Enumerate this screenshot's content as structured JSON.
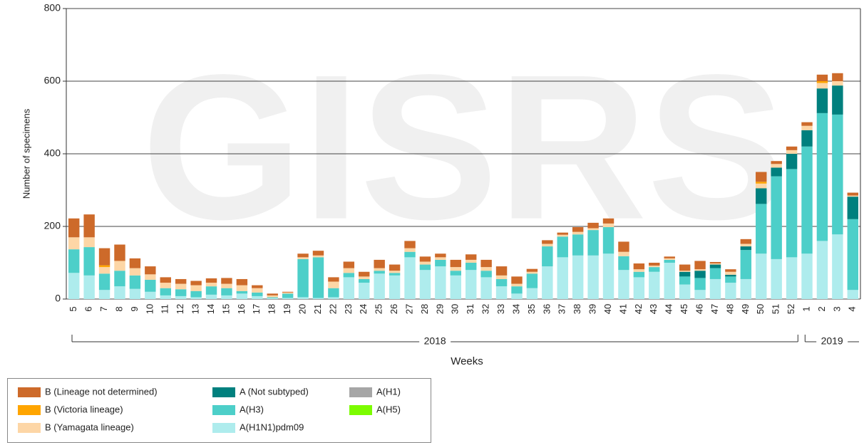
{
  "chart_data": {
    "type": "stacked_bar",
    "watermark": "GISRS",
    "ylabel": "Number of specimens",
    "xlabel": "Weeks",
    "year_labels": [
      "2018",
      "2019"
    ],
    "categories": [
      "5",
      "6",
      "7",
      "8",
      "9",
      "10",
      "11",
      "12",
      "13",
      "14",
      "15",
      "16",
      "17",
      "18",
      "19",
      "20",
      "21",
      "22",
      "23",
      "24",
      "25",
      "26",
      "27",
      "28",
      "29",
      "30",
      "31",
      "32",
      "33",
      "34",
      "35",
      "36",
      "37",
      "38",
      "39",
      "40",
      "41",
      "42",
      "43",
      "44",
      "45",
      "46",
      "47",
      "48",
      "49",
      "50",
      "51",
      "52",
      "1",
      "2",
      "3",
      "4"
    ],
    "ylim": [
      0,
      800
    ],
    "yticks": [
      0,
      200,
      400,
      600,
      800
    ],
    "grid": true,
    "series": [
      {
        "name": "B (Lineage not determined)",
        "color": "#cd6a2a",
        "values": [
          52,
          63,
          47,
          45,
          27,
          22,
          15,
          13,
          12,
          12,
          16,
          17,
          8,
          5,
          2,
          10,
          13,
          12,
          18,
          13,
          23,
          17,
          20,
          14,
          10,
          20,
          15,
          20,
          25,
          20,
          8,
          10,
          6,
          13,
          15,
          14,
          28,
          16,
          8,
          5,
          17,
          23,
          4,
          7,
          13,
          27,
          8,
          10,
          10,
          18,
          22,
          8
        ]
      },
      {
        "name": "B (Victoria lineage)",
        "color": "#ffa500",
        "values": [
          0,
          0,
          5,
          0,
          0,
          0,
          0,
          0,
          0,
          0,
          0,
          0,
          0,
          0,
          0,
          0,
          0,
          0,
          0,
          0,
          0,
          0,
          0,
          0,
          0,
          0,
          0,
          0,
          0,
          0,
          0,
          0,
          0,
          0,
          0,
          0,
          0,
          0,
          0,
          0,
          0,
          0,
          0,
          0,
          0,
          5,
          0,
          0,
          0,
          5,
          0,
          0
        ]
      },
      {
        "name": "B (Yamagata lineage)",
        "color": "#fdd6a6",
        "values": [
          33,
          27,
          18,
          27,
          20,
          15,
          15,
          15,
          16,
          10,
          12,
          16,
          12,
          5,
          3,
          5,
          5,
          18,
          13,
          7,
          7,
          6,
          10,
          8,
          7,
          10,
          8,
          10,
          10,
          7,
          5,
          7,
          5,
          7,
          5,
          10,
          12,
          7,
          4,
          4,
          3,
          4,
          3,
          8,
          7,
          13,
          10,
          10,
          12,
          15,
          12,
          3
        ]
      },
      {
        "name": "A (Not subtyped)",
        "color": "#00807e",
        "values": [
          0,
          0,
          0,
          0,
          0,
          0,
          0,
          0,
          0,
          0,
          0,
          0,
          0,
          0,
          0,
          0,
          0,
          0,
          0,
          0,
          0,
          0,
          0,
          0,
          0,
          0,
          0,
          0,
          0,
          0,
          0,
          0,
          0,
          0,
          0,
          0,
          0,
          0,
          0,
          0,
          13,
          20,
          10,
          5,
          10,
          43,
          24,
          42,
          45,
          68,
          80,
          62
        ]
      },
      {
        "name": "A(H3)",
        "color": "#4dcfc9",
        "values": [
          65,
          78,
          45,
          43,
          37,
          33,
          20,
          19,
          17,
          23,
          20,
          7,
          10,
          2,
          12,
          105,
          112,
          25,
          12,
          10,
          8,
          7,
          15,
          15,
          18,
          13,
          20,
          18,
          20,
          20,
          40,
          55,
          57,
          58,
          70,
          73,
          38,
          15,
          13,
          8,
          22,
          33,
          30,
          17,
          80,
          137,
          228,
          243,
          295,
          352,
          330,
          195
        ]
      },
      {
        "name": "A(H1N1)pdm09",
        "color": "#aeeced",
        "values": [
          72,
          65,
          25,
          35,
          28,
          20,
          10,
          8,
          5,
          12,
          10,
          15,
          8,
          3,
          3,
          5,
          3,
          5,
          60,
          45,
          70,
          65,
          115,
          80,
          90,
          65,
          80,
          60,
          35,
          15,
          30,
          90,
          115,
          120,
          120,
          125,
          80,
          60,
          75,
          100,
          40,
          25,
          55,
          45,
          55,
          125,
          110,
          115,
          125,
          160,
          178,
          25
        ]
      },
      {
        "name": "A(H1)",
        "color": "#a6a6a6",
        "values": [
          0,
          0,
          0,
          0,
          0,
          0,
          0,
          0,
          0,
          0,
          0,
          0,
          0,
          0,
          0,
          0,
          0,
          0,
          0,
          0,
          0,
          0,
          0,
          0,
          0,
          0,
          0,
          0,
          0,
          0,
          0,
          0,
          0,
          0,
          0,
          0,
          0,
          0,
          0,
          0,
          0,
          0,
          0,
          0,
          0,
          0,
          0,
          0,
          0,
          0,
          0,
          0
        ]
      },
      {
        "name": "A(H5)",
        "color": "#7cfc00",
        "values": [
          0,
          0,
          0,
          0,
          0,
          0,
          0,
          0,
          0,
          0,
          0,
          0,
          0,
          0,
          0,
          0,
          0,
          0,
          0,
          0,
          0,
          0,
          0,
          0,
          0,
          0,
          0,
          0,
          0,
          0,
          0,
          0,
          0,
          0,
          0,
          0,
          0,
          0,
          0,
          0,
          0,
          0,
          0,
          0,
          0,
          0,
          0,
          0,
          0,
          0,
          0,
          0
        ]
      }
    ]
  }
}
